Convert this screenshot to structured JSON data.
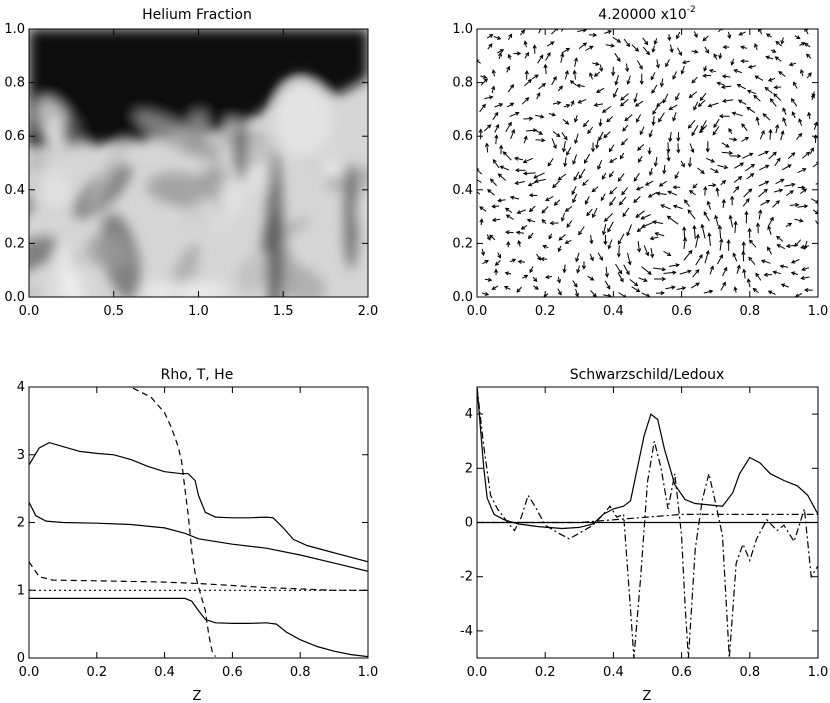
{
  "colors": {
    "ink": "#000000",
    "background": "#ffffff"
  },
  "chart_data": [
    {
      "type": "heatmap",
      "title": "Helium Fraction",
      "xlim": [
        0.0,
        2.0
      ],
      "ylim": [
        0.0,
        1.0
      ],
      "x_ticks": [
        0.0,
        0.5,
        1.0,
        1.5,
        2.0
      ],
      "x_tick_labels": [
        "0.0",
        "0.5",
        "1.0",
        "1.5",
        "2.0"
      ],
      "y_ticks": [
        0.0,
        0.2,
        0.4,
        0.6,
        0.8,
        1.0
      ],
      "y_tick_labels": [
        "0.0",
        "0.2",
        "0.4",
        "0.6",
        "0.8",
        "1.0"
      ],
      "colormap": "grayscale",
      "interface_height": [
        [
          0.0,
          0.55
        ],
        [
          0.1,
          0.56
        ],
        [
          0.2,
          0.56
        ],
        [
          0.3,
          0.57
        ],
        [
          0.4,
          0.57
        ],
        [
          0.5,
          0.58
        ],
        [
          0.6,
          0.58
        ],
        [
          0.7,
          0.59
        ],
        [
          0.8,
          0.6
        ],
        [
          0.9,
          0.6
        ],
        [
          1.0,
          0.61
        ],
        [
          1.1,
          0.62
        ],
        [
          1.2,
          0.63
        ],
        [
          1.3,
          0.66
        ],
        [
          1.4,
          0.7
        ],
        [
          1.5,
          0.8
        ],
        [
          1.6,
          0.83
        ],
        [
          1.7,
          0.8
        ],
        [
          1.8,
          0.75
        ],
        [
          1.9,
          0.78
        ],
        [
          2.0,
          0.82
        ]
      ]
    },
    {
      "type": "quiver",
      "title_mantissa": "4.20000 x10",
      "title_exponent": "-2",
      "xlim": [
        0.0,
        1.0
      ],
      "ylim": [
        0.0,
        1.0
      ],
      "x_ticks": [
        0.0,
        0.2,
        0.4,
        0.6,
        0.8,
        1.0
      ],
      "x_tick_labels": [
        "0.0",
        "0.2",
        "0.4",
        "0.6",
        "0.8",
        "1.0"
      ],
      "y_ticks": [
        0.0,
        0.2,
        0.4,
        0.6,
        0.8,
        1.0
      ],
      "y_tick_labels": [
        "0.0",
        "0.2",
        "0.4",
        "0.6",
        "0.8",
        "1.0"
      ],
      "vortices": [
        {
          "center": [
            0.55,
            0.2
          ],
          "strength": 1.0
        },
        {
          "center": [
            0.15,
            0.55
          ],
          "strength": -0.8
        },
        {
          "center": [
            0.75,
            0.6
          ],
          "strength": 0.7
        },
        {
          "center": [
            0.35,
            0.85
          ],
          "strength": -0.6
        },
        {
          "center": [
            0.9,
            0.25
          ],
          "strength": -0.5
        }
      ]
    },
    {
      "type": "line",
      "title": "Rho, T, He",
      "xlabel": "Z",
      "xlim": [
        0.0,
        1.0
      ],
      "ylim": [
        0,
        4
      ],
      "x_ticks": [
        0.0,
        0.2,
        0.4,
        0.6,
        0.8,
        1.0
      ],
      "x_tick_labels": [
        "0.0",
        "0.2",
        "0.4",
        "0.6",
        "0.8",
        "1.0"
      ],
      "y_ticks": [
        0,
        1,
        2,
        3,
        4
      ],
      "y_tick_labels": [
        "0",
        "1",
        "2",
        "3",
        "4"
      ],
      "series": [
        {
          "style": "solid",
          "points": [
            [
              0.0,
              2.85
            ],
            [
              0.03,
              3.1
            ],
            [
              0.06,
              3.18
            ],
            [
              0.1,
              3.12
            ],
            [
              0.15,
              3.05
            ],
            [
              0.2,
              3.02
            ],
            [
              0.25,
              3.0
            ],
            [
              0.3,
              2.93
            ],
            [
              0.35,
              2.83
            ],
            [
              0.4,
              2.75
            ],
            [
              0.45,
              2.72
            ],
            [
              0.47,
              2.72
            ],
            [
              0.49,
              2.62
            ],
            [
              0.5,
              2.4
            ],
            [
              0.52,
              2.15
            ],
            [
              0.55,
              2.08
            ],
            [
              0.6,
              2.07
            ],
            [
              0.65,
              2.07
            ],
            [
              0.7,
              2.08
            ],
            [
              0.72,
              2.07
            ],
            [
              0.75,
              1.92
            ],
            [
              0.78,
              1.75
            ],
            [
              0.82,
              1.66
            ],
            [
              0.88,
              1.58
            ],
            [
              0.94,
              1.5
            ],
            [
              1.0,
              1.42
            ]
          ]
        },
        {
          "style": "solid",
          "points": [
            [
              0.0,
              2.3
            ],
            [
              0.02,
              2.1
            ],
            [
              0.05,
              2.02
            ],
            [
              0.1,
              2.0
            ],
            [
              0.2,
              1.99
            ],
            [
              0.3,
              1.97
            ],
            [
              0.4,
              1.92
            ],
            [
              0.46,
              1.84
            ],
            [
              0.5,
              1.76
            ],
            [
              0.6,
              1.68
            ],
            [
              0.7,
              1.62
            ],
            [
              0.8,
              1.52
            ],
            [
              0.9,
              1.4
            ],
            [
              1.0,
              1.28
            ]
          ]
        },
        {
          "style": "solid",
          "points": [
            [
              0.0,
              0.88
            ],
            [
              0.1,
              0.88
            ],
            [
              0.2,
              0.88
            ],
            [
              0.3,
              0.88
            ],
            [
              0.4,
              0.88
            ],
            [
              0.46,
              0.88
            ],
            [
              0.48,
              0.84
            ],
            [
              0.5,
              0.7
            ],
            [
              0.52,
              0.57
            ],
            [
              0.55,
              0.52
            ],
            [
              0.6,
              0.51
            ],
            [
              0.65,
              0.51
            ],
            [
              0.7,
              0.52
            ],
            [
              0.73,
              0.5
            ],
            [
              0.76,
              0.38
            ],
            [
              0.8,
              0.27
            ],
            [
              0.85,
              0.17
            ],
            [
              0.9,
              0.1
            ],
            [
              0.95,
              0.05
            ],
            [
              1.0,
              0.02
            ]
          ]
        },
        {
          "style": "dashed",
          "points": [
            [
              0.02,
              4.0
            ],
            [
              0.06,
              4.1
            ],
            [
              0.1,
              4.12
            ],
            [
              0.2,
              4.1
            ],
            [
              0.3,
              4.0
            ],
            [
              0.36,
              3.85
            ],
            [
              0.4,
              3.62
            ],
            [
              0.42,
              3.4
            ],
            [
              0.44,
              3.12
            ],
            [
              0.45,
              2.9
            ],
            [
              0.46,
              2.5
            ],
            [
              0.47,
              2.1
            ],
            [
              0.48,
              1.6
            ],
            [
              0.49,
              1.25
            ],
            [
              0.5,
              1.05
            ],
            [
              0.52,
              0.7
            ],
            [
              0.53,
              0.35
            ],
            [
              0.54,
              0.1
            ],
            [
              0.55,
              0.02
            ]
          ]
        },
        {
          "style": "dashed",
          "points": [
            [
              0.0,
              1.42
            ],
            [
              0.03,
              1.2
            ],
            [
              0.07,
              1.15
            ],
            [
              0.2,
              1.14
            ],
            [
              0.4,
              1.12
            ],
            [
              0.5,
              1.1
            ],
            [
              0.6,
              1.07
            ],
            [
              0.7,
              1.04
            ],
            [
              0.8,
              1.02
            ],
            [
              0.9,
              1.0
            ],
            [
              1.0,
              1.0
            ]
          ]
        },
        {
          "style": "dotted",
          "points": [
            [
              0.0,
              1.0
            ],
            [
              1.0,
              1.0
            ]
          ]
        }
      ]
    },
    {
      "type": "line",
      "title": "Schwarzschild/Ledoux",
      "xlabel": "Z",
      "xlim": [
        0.0,
        1.0
      ],
      "ylim": [
        -5,
        5
      ],
      "x_ticks": [
        0.0,
        0.2,
        0.4,
        0.6,
        0.8,
        1.0
      ],
      "x_tick_labels": [
        "0.0",
        "0.2",
        "0.4",
        "0.6",
        "0.8",
        "1.0"
      ],
      "y_ticks": [
        -4,
        -2,
        0,
        2,
        4
      ],
      "y_tick_labels": [
        "-4",
        "-2",
        "0",
        "2",
        "4"
      ],
      "series": [
        {
          "style": "solid",
          "points": [
            [
              0.0,
              5.0
            ],
            [
              0.01,
              3.5
            ],
            [
              0.02,
              2.0
            ],
            [
              0.03,
              0.9
            ],
            [
              0.05,
              0.3
            ],
            [
              0.08,
              0.1
            ],
            [
              0.12,
              -0.05
            ],
            [
              0.18,
              -0.15
            ],
            [
              0.25,
              -0.22
            ],
            [
              0.3,
              -0.18
            ],
            [
              0.34,
              -0.05
            ],
            [
              0.37,
              0.3
            ],
            [
              0.4,
              0.5
            ],
            [
              0.43,
              0.6
            ],
            [
              0.45,
              0.8
            ],
            [
              0.47,
              2.0
            ],
            [
              0.49,
              3.2
            ],
            [
              0.51,
              4.0
            ],
            [
              0.53,
              3.8
            ],
            [
              0.55,
              2.7
            ],
            [
              0.58,
              1.4
            ],
            [
              0.61,
              0.85
            ],
            [
              0.64,
              0.7
            ],
            [
              0.68,
              0.65
            ],
            [
              0.72,
              0.6
            ],
            [
              0.75,
              1.1
            ],
            [
              0.77,
              1.8
            ],
            [
              0.8,
              2.4
            ],
            [
              0.83,
              2.2
            ],
            [
              0.86,
              1.8
            ],
            [
              0.9,
              1.55
            ],
            [
              0.94,
              1.35
            ],
            [
              0.97,
              1.0
            ],
            [
              1.0,
              0.3
            ]
          ]
        },
        {
          "style": "dashdot",
          "points": [
            [
              0.0,
              5.0
            ],
            [
              0.02,
              2.8
            ],
            [
              0.04,
              1.0
            ],
            [
              0.06,
              0.5
            ],
            [
              0.09,
              0.0
            ],
            [
              0.11,
              -0.3
            ],
            [
              0.13,
              0.2
            ],
            [
              0.15,
              1.0
            ],
            [
              0.17,
              0.6
            ],
            [
              0.2,
              -0.1
            ],
            [
              0.24,
              -0.4
            ],
            [
              0.27,
              -0.6
            ],
            [
              0.3,
              -0.4
            ],
            [
              0.34,
              -0.1
            ],
            [
              0.37,
              0.3
            ],
            [
              0.39,
              0.6
            ],
            [
              0.41,
              0.2
            ],
            [
              0.43,
              0.3
            ],
            [
              0.45,
              -3.2
            ],
            [
              0.46,
              -5.0
            ],
            [
              0.48,
              -2.0
            ],
            [
              0.5,
              1.5
            ],
            [
              0.52,
              3.0
            ],
            [
              0.54,
              2.0
            ],
            [
              0.56,
              0.5
            ],
            [
              0.58,
              1.8
            ],
            [
              0.6,
              -0.5
            ],
            [
              0.61,
              -3.0
            ],
            [
              0.62,
              -5.0
            ],
            [
              0.64,
              -1.0
            ],
            [
              0.66,
              0.8
            ],
            [
              0.68,
              1.8
            ],
            [
              0.7,
              0.7
            ],
            [
              0.72,
              -0.5
            ],
            [
              0.74,
              -5.0
            ],
            [
              0.76,
              -1.5
            ],
            [
              0.78,
              -0.8
            ],
            [
              0.8,
              -1.4
            ],
            [
              0.82,
              -0.6
            ],
            [
              0.85,
              0.1
            ],
            [
              0.88,
              -0.3
            ],
            [
              0.9,
              -0.1
            ],
            [
              0.93,
              -0.7
            ],
            [
              0.96,
              0.5
            ],
            [
              0.98,
              -2.0
            ],
            [
              1.0,
              -1.6
            ]
          ]
        },
        {
          "style": "dashdot",
          "points": [
            [
              0.0,
              0.0
            ],
            [
              0.3,
              0.0
            ],
            [
              0.4,
              0.1
            ],
            [
              0.5,
              0.2
            ],
            [
              0.6,
              0.3
            ],
            [
              0.7,
              0.3
            ],
            [
              0.8,
              0.3
            ],
            [
              0.9,
              0.3
            ],
            [
              1.0,
              0.3
            ]
          ]
        },
        {
          "style": "solid",
          "points": [
            [
              0.0,
              0.0
            ],
            [
              1.0,
              0.0
            ]
          ]
        }
      ]
    }
  ]
}
